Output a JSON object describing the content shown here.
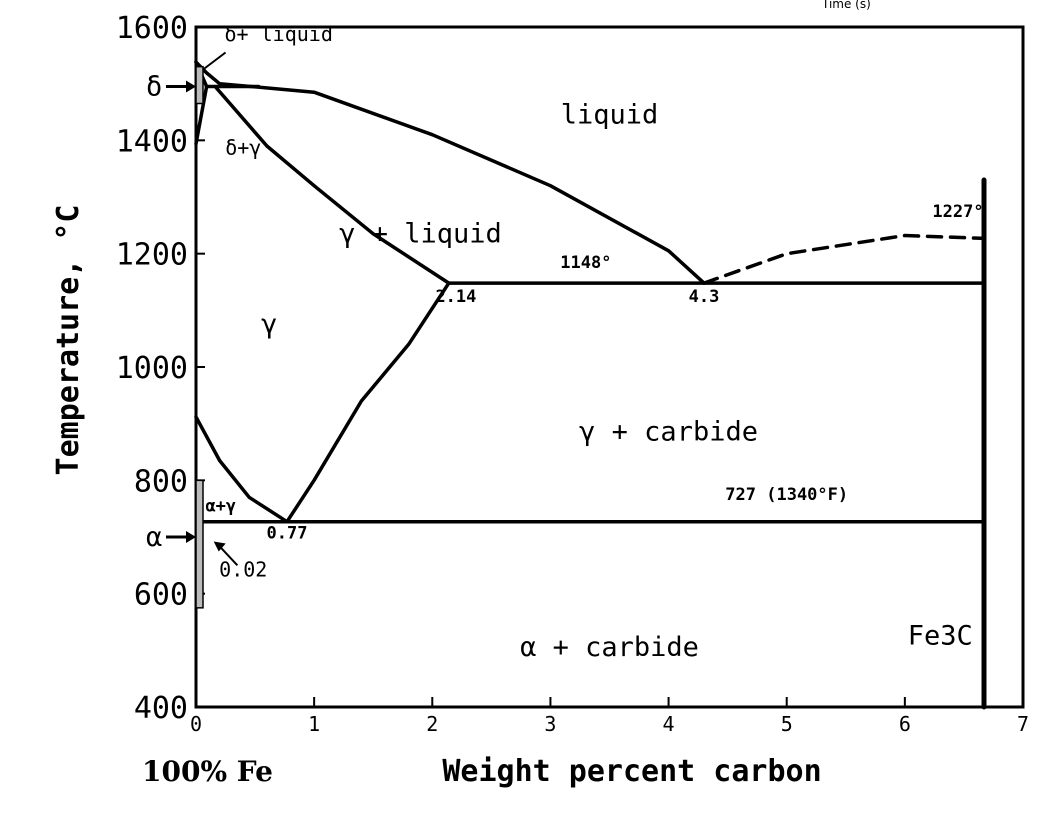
{
  "chart_data": {
    "type": "line",
    "title": "",
    "ylabel": "Temperature, °C",
    "xlabel": "Weight percent carbon",
    "origin_label": "100% Fe",
    "cropped_text": "Time (s)",
    "xlim": [
      0,
      7
    ],
    "ylim": [
      400,
      1600
    ],
    "x_ticks": [
      "0",
      "1",
      "2",
      "3",
      "4",
      "5",
      "6",
      "7"
    ],
    "y_ticks": [
      "400",
      "600",
      "800",
      "1000",
      "1200",
      "1400",
      "1600"
    ],
    "axis_markers": [
      {
        "label": "δ",
        "y": 1495
      },
      {
        "label": "α",
        "y": 700
      }
    ],
    "regions": [
      {
        "label": "liquid",
        "x": 3.5,
        "y": 1430
      },
      {
        "label": "γ + liquid",
        "x": 1.9,
        "y": 1220
      },
      {
        "label": "γ",
        "x": 0.62,
        "y": 1060
      },
      {
        "label": "γ + carbide",
        "x": 4.0,
        "y": 870
      },
      {
        "label": "α + carbide",
        "x": 3.5,
        "y": 490
      },
      {
        "label": "Fe3C",
        "x": 6.3,
        "y": 510
      },
      {
        "label": "δ+ liquid",
        "x": 0.7,
        "y": 1575
      },
      {
        "label": "δ+γ",
        "x": 0.4,
        "y": 1375
      },
      {
        "label": "α+γ",
        "x": 0.21,
        "y": 745
      }
    ],
    "annotations": [
      {
        "text": "1148°",
        "x": 3.3,
        "y": 1175
      },
      {
        "text": "1227°",
        "x": 6.45,
        "y": 1265
      },
      {
        "text": "2.14",
        "x": 2.2,
        "y": 1115
      },
      {
        "text": "4.3",
        "x": 4.3,
        "y": 1115
      },
      {
        "text": "0.77",
        "x": 0.77,
        "y": 697
      },
      {
        "text": "0.02",
        "x": 0.4,
        "y": 630
      },
      {
        "text": "727 (1340°F)",
        "x": 5.0,
        "y": 765
      }
    ],
    "series": [
      {
        "role": "liquidus",
        "style": "solid",
        "x": [
          0.0,
          0.09,
          0.2,
          1.0,
          2.0,
          3.0,
          4.0,
          4.3
        ],
        "y": [
          1538,
          1519,
          1500,
          1485,
          1410,
          1320,
          1205,
          1148
        ]
      },
      {
        "role": "cementite liquidus",
        "style": "dashed",
        "x": [
          4.3,
          5.0,
          6.0,
          6.67
        ],
        "y": [
          1148,
          1200,
          1232,
          1227
        ]
      },
      {
        "role": "solidus",
        "style": "solid",
        "x": [
          0.17,
          0.6,
          1.0,
          1.5,
          2.14
        ],
        "y": [
          1493,
          1390,
          1320,
          1235,
          1148
        ]
      },
      {
        "role": "eutectic",
        "style": "solid",
        "x": [
          2.14,
          6.67
        ],
        "y": [
          1148,
          1148
        ]
      },
      {
        "role": "acm",
        "style": "solid",
        "x": [
          2.14,
          1.8,
          1.4,
          1.0,
          0.77
        ],
        "y": [
          1148,
          1040,
          940,
          800,
          727
        ]
      },
      {
        "role": "a3",
        "style": "solid",
        "x": [
          0.0,
          0.2,
          0.45,
          0.77
        ],
        "y": [
          912,
          835,
          770,
          727
        ]
      },
      {
        "role": "eutectoid",
        "style": "solid",
        "x": [
          0.02,
          6.67
        ],
        "y": [
          727,
          727
        ]
      },
      {
        "role": "Fe3C composition",
        "style": "solid",
        "x": [
          6.67,
          6.67
        ],
        "y": [
          400,
          1330
        ]
      },
      {
        "role": "delta upper",
        "style": "solid",
        "x": [
          0.0,
          0.09
        ],
        "y": [
          1538,
          1495
        ]
      },
      {
        "role": "delta lower",
        "style": "solid",
        "x": [
          0.0,
          0.09
        ],
        "y": [
          1394,
          1495
        ]
      },
      {
        "role": "peritectic",
        "style": "solid",
        "x": [
          0.09,
          0.53
        ],
        "y": [
          1495,
          1495
        ]
      }
    ]
  }
}
